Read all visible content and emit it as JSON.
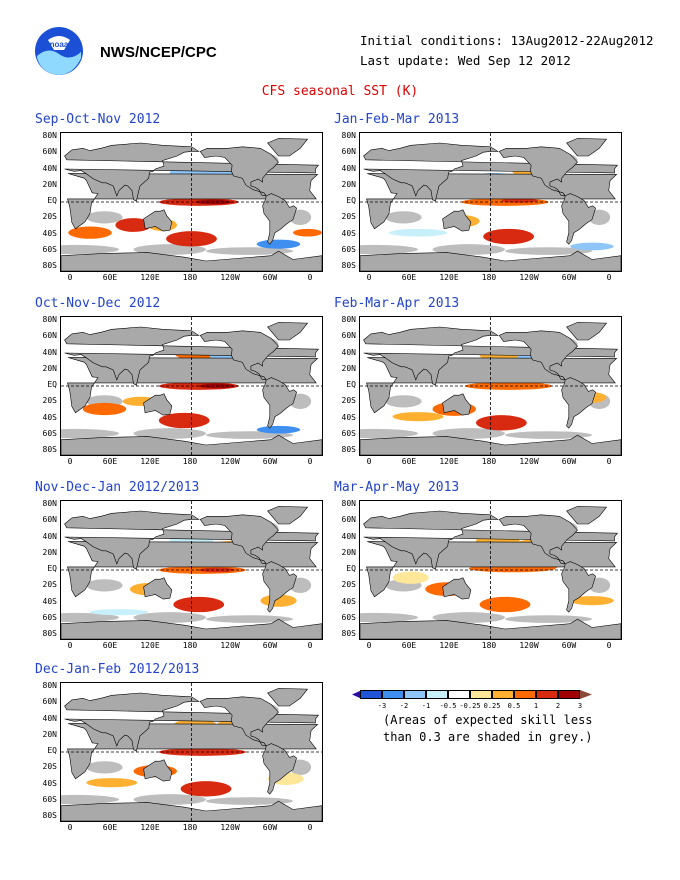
{
  "header": {
    "agency": "NWS/NCEP/CPC",
    "initial_conditions": "Initial conditions: 13Aug2012-22Aug2012",
    "last_update": "Last update: Wed Sep 12 2012",
    "subtitle": "CFS seasonal SST (K)"
  },
  "panels": [
    {
      "title": "Sep-Oct-Nov 2012"
    },
    {
      "title": "Jan-Feb-Mar 2013"
    },
    {
      "title": "Oct-Nov-Dec 2012"
    },
    {
      "title": "Feb-Mar-Apr 2013"
    },
    {
      "title": "Nov-Dec-Jan 2012/2013"
    },
    {
      "title": "Mar-Apr-May 2013"
    },
    {
      "title": "Dec-Jan-Feb 2012/2013"
    }
  ],
  "axes": {
    "y_labels": [
      "80N",
      "60N",
      "40N",
      "20N",
      "EQ",
      "20S",
      "40S",
      "60S",
      "80S"
    ],
    "x_labels": [
      "0",
      "60E",
      "120E",
      "180",
      "120W",
      "60W",
      "0"
    ]
  },
  "legend": {
    "values": [
      "-3",
      "-2",
      "-1",
      "-0.5",
      "-0.25",
      "0.25",
      "0.5",
      "1",
      "2",
      "3"
    ],
    "colors": [
      "#2a0aa8",
      "#1f55d6",
      "#3f8ff0",
      "#8ec6fa",
      "#c8f0fa",
      "#ffffff",
      "#ffe79a",
      "#ffb030",
      "#ff6a00",
      "#d82a10",
      "#a00000",
      "#8a4a3a"
    ],
    "note_line1": "(Areas of expected skill less",
    "note_line2": "than 0.3 are shaded in grey.)"
  }
}
